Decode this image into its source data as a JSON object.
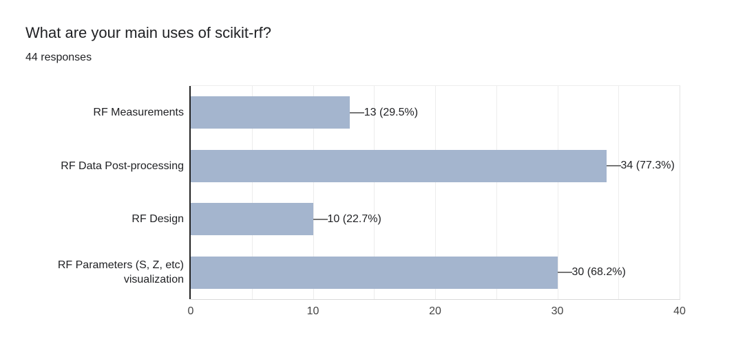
{
  "page": {
    "background": "#ffffff"
  },
  "header": {
    "title": "What are your main uses of scikit-rf?",
    "subtitle": "44 responses"
  },
  "chart_data": {
    "type": "bar",
    "orientation": "horizontal",
    "title": "What are your main uses of scikit-rf?",
    "subtitle": "44 responses",
    "total_responses": 44,
    "categories": [
      "RF Measurements",
      "RF Data Post-processing",
      "RF Design",
      "RF Parameters (S, Z, etc) visualization"
    ],
    "category_lines": [
      [
        "RF Measurements"
      ],
      [
        "RF Data Post-processing"
      ],
      [
        "RF Design"
      ],
      [
        "RF Parameters (S, Z, etc)",
        "visualization"
      ]
    ],
    "values": [
      13,
      34,
      10,
      30
    ],
    "percentages": [
      29.5,
      77.3,
      22.7,
      68.2
    ],
    "value_labels": [
      "13 (29.5%)",
      "34 (77.3%)",
      "10 (22.7%)",
      "30 (68.2%)"
    ],
    "xlabel": "",
    "ylabel": "",
    "xlim": [
      0,
      40
    ],
    "x_ticks": [
      "0",
      "10",
      "20",
      "30",
      "40"
    ],
    "minor_grid_step": 5,
    "grid": "vertical minor gridlines every 5 units",
    "legend": "none",
    "bar_color": "#a4b5ce",
    "grid_color": "#ececec",
    "axis_line_color": "#212121",
    "leader_line_color": "#757575",
    "text_color": "#202124",
    "tick_label_color": "#444444"
  }
}
